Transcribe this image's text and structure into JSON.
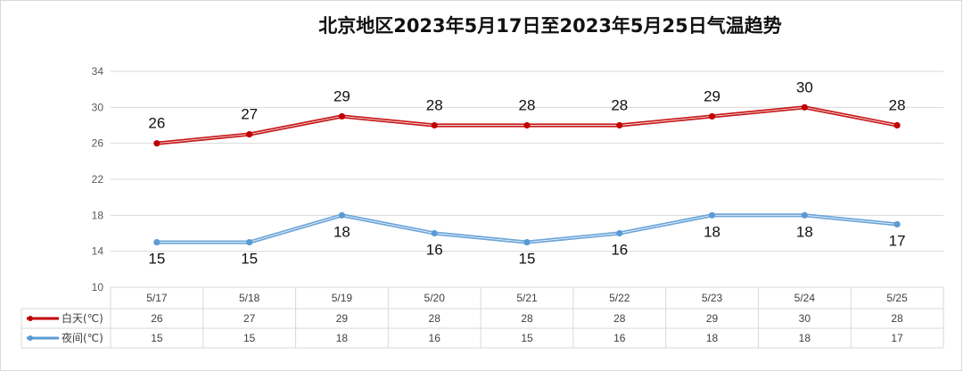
{
  "chart_data": {
    "type": "line",
    "title": "北京地区2023年5月17日至2023年5月25日气温趋势",
    "categories": [
      "5/17",
      "5/18",
      "5/19",
      "5/20",
      "5/21",
      "5/22",
      "5/23",
      "5/24",
      "5/25"
    ],
    "ylim": [
      10,
      34
    ],
    "yticks": [
      10,
      14,
      18,
      22,
      26,
      30,
      34
    ],
    "grid": true,
    "legend_placement": "data-table-left",
    "series": [
      {
        "name": "白天(℃)",
        "color": "#c00000",
        "values": [
          26,
          27,
          29,
          28,
          28,
          28,
          29,
          30,
          28
        ],
        "label_position": "above"
      },
      {
        "name": "夜间(℃)",
        "color": "#5b9bd5",
        "values": [
          15,
          15,
          18,
          16,
          15,
          16,
          18,
          18,
          17
        ],
        "label_position": "below"
      }
    ]
  }
}
